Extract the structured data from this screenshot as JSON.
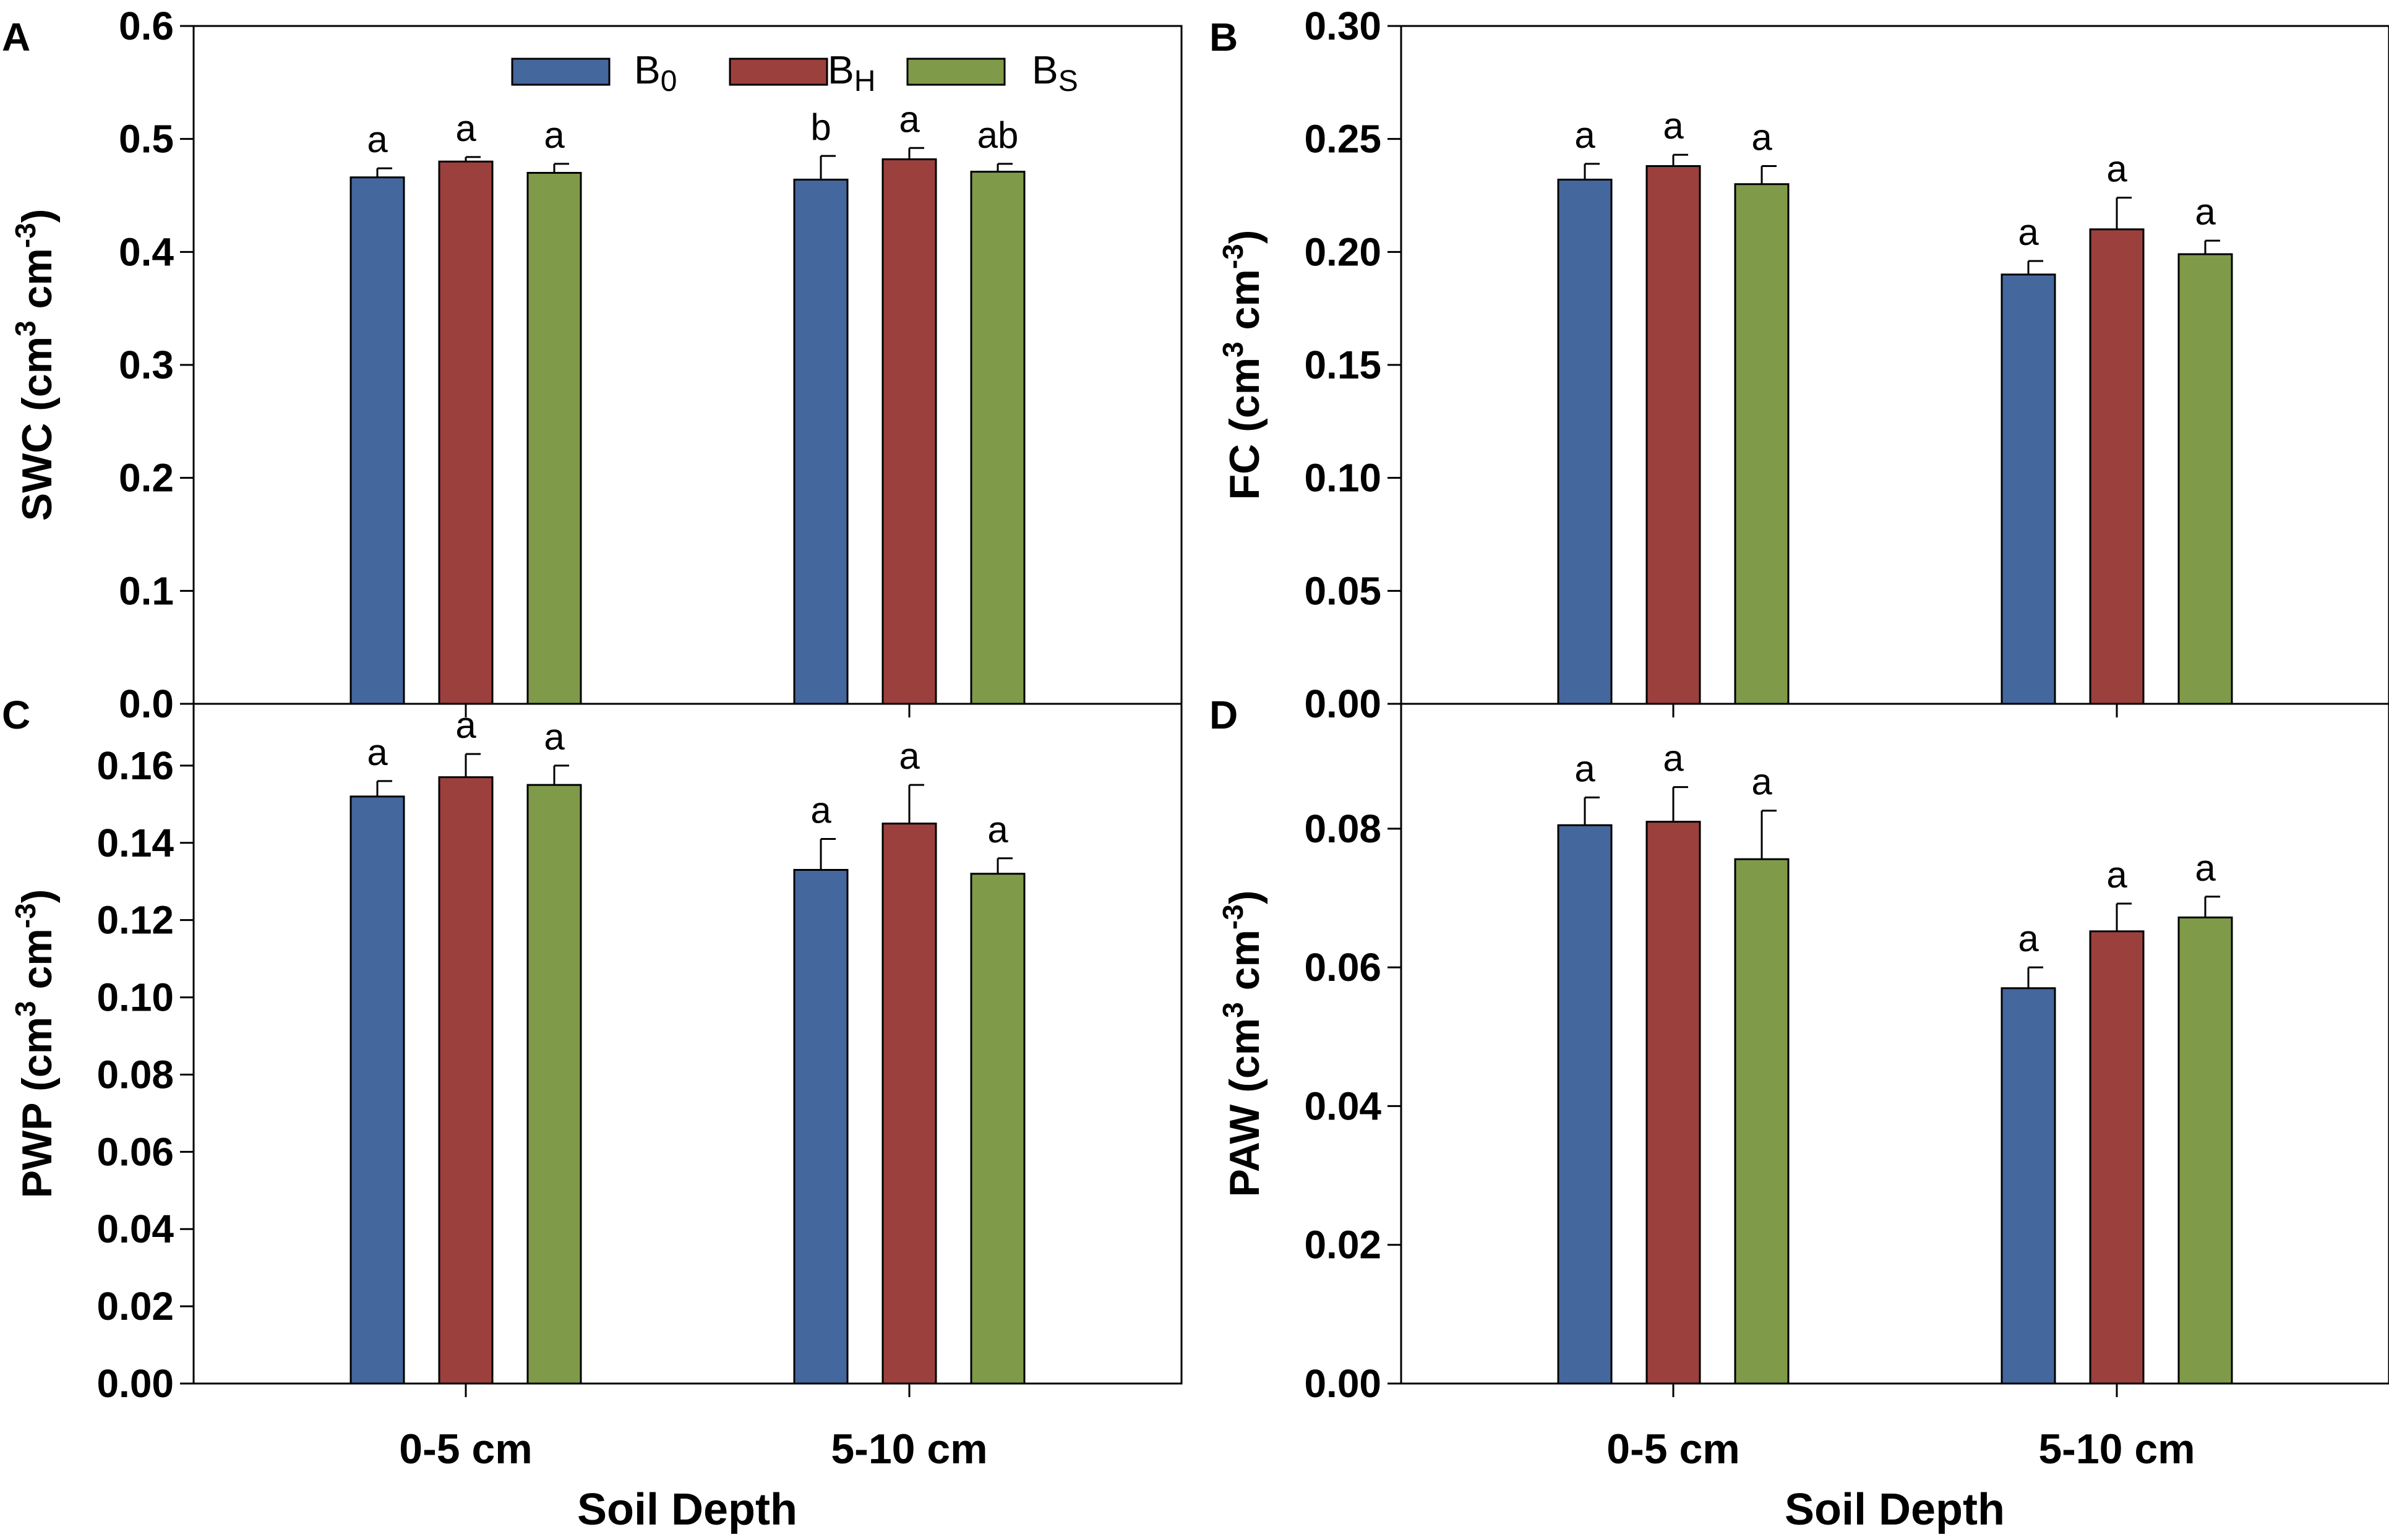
{
  "figure": {
    "xlabel": "Soil Depth",
    "categories": [
      "0-5 cm",
      "5-10 cm"
    ],
    "legend": [
      {
        "base": "B",
        "sub": "0",
        "color": "#44679e"
      },
      {
        "base": "B",
        "sub": "H",
        "color": "#9c403e"
      },
      {
        "base": "B",
        "sub": "S",
        "color": "#7f9b4a"
      }
    ]
  },
  "chart_data": [
    {
      "panel": "A",
      "type": "bar",
      "title": "",
      "ylabel": {
        "main": "SWC (cm",
        "sup1": "3",
        "mid": " cm",
        "sup2": "-3",
        "end": ")"
      },
      "ylim": [
        0,
        0.6
      ],
      "yticks": [
        "0.0",
        "0.1",
        "0.2",
        "0.3",
        "0.4",
        "0.5",
        "0.6"
      ],
      "categories": [
        "0-5 cm",
        "5-10 cm"
      ],
      "series": [
        {
          "name": "B0",
          "values": [
            0.466,
            0.464
          ],
          "errors": [
            0.008,
            0.021
          ],
          "letters": [
            "a",
            "b"
          ]
        },
        {
          "name": "BH",
          "values": [
            0.48,
            0.482
          ],
          "errors": [
            0.004,
            0.01
          ],
          "letters": [
            "a",
            "a"
          ]
        },
        {
          "name": "BS",
          "values": [
            0.47,
            0.471
          ],
          "errors": [
            0.008,
            0.007
          ],
          "letters": [
            "a",
            "ab"
          ]
        }
      ]
    },
    {
      "panel": "B",
      "type": "bar",
      "title": "",
      "ylabel": {
        "main": "FC (cm",
        "sup1": "3",
        "mid": " cm",
        "sup2": "-3",
        "end": ")"
      },
      "ylim": [
        0,
        0.3
      ],
      "yticks": [
        "0.00",
        "0.05",
        "0.10",
        "0.15",
        "0.20",
        "0.25",
        "0.30"
      ],
      "categories": [
        "0-5 cm",
        "5-10 cm"
      ],
      "series": [
        {
          "name": "B0",
          "values": [
            0.232,
            0.19
          ],
          "errors": [
            0.007,
            0.006
          ],
          "letters": [
            "a",
            "a"
          ]
        },
        {
          "name": "BH",
          "values": [
            0.238,
            0.21
          ],
          "errors": [
            0.005,
            0.014
          ],
          "letters": [
            "a",
            "a"
          ]
        },
        {
          "name": "BS",
          "values": [
            0.23,
            0.199
          ],
          "errors": [
            0.008,
            0.006
          ],
          "letters": [
            "a",
            "a"
          ]
        }
      ]
    },
    {
      "panel": "C",
      "type": "bar",
      "title": "",
      "ylabel": {
        "main": "PWP (cm",
        "sup1": "3",
        "mid": " cm",
        "sup2": "-3",
        "end": ")"
      },
      "ylim": [
        0,
        0.176
      ],
      "yticks": [
        "0.00",
        "0.02",
        "0.04",
        "0.06",
        "0.08",
        "0.10",
        "0.12",
        "0.14",
        "0.16"
      ],
      "categories": [
        "0-5 cm",
        "5-10 cm"
      ],
      "series": [
        {
          "name": "B0",
          "values": [
            0.152,
            0.133
          ],
          "errors": [
            0.004,
            0.008
          ],
          "letters": [
            "a",
            "a"
          ]
        },
        {
          "name": "BH",
          "values": [
            0.157,
            0.145
          ],
          "errors": [
            0.006,
            0.01
          ],
          "letters": [
            "a",
            "a"
          ]
        },
        {
          "name": "BS",
          "values": [
            0.155,
            0.132
          ],
          "errors": [
            0.005,
            0.004
          ],
          "letters": [
            "a",
            "a"
          ]
        }
      ]
    },
    {
      "panel": "D",
      "type": "bar",
      "title": "",
      "ylabel": {
        "main": "PAW (cm",
        "sup1": "3",
        "mid": " cm",
        "sup2": "-3",
        "end": ")"
      },
      "ylim": [
        0,
        0.098
      ],
      "yticks": [
        "0.00",
        "0.02",
        "0.04",
        "0.06",
        "0.08"
      ],
      "categories": [
        "0-5 cm",
        "5-10 cm"
      ],
      "series": [
        {
          "name": "B0",
          "values": [
            0.0805,
            0.057
          ],
          "errors": [
            0.004,
            0.003
          ],
          "letters": [
            "a",
            "a"
          ]
        },
        {
          "name": "BH",
          "values": [
            0.081,
            0.0652
          ],
          "errors": [
            0.005,
            0.004
          ],
          "letters": [
            "a",
            "a"
          ]
        },
        {
          "name": "BS",
          "values": [
            0.0756,
            0.0672
          ],
          "errors": [
            0.007,
            0.003
          ],
          "letters": [
            "a",
            "a"
          ]
        }
      ]
    }
  ]
}
